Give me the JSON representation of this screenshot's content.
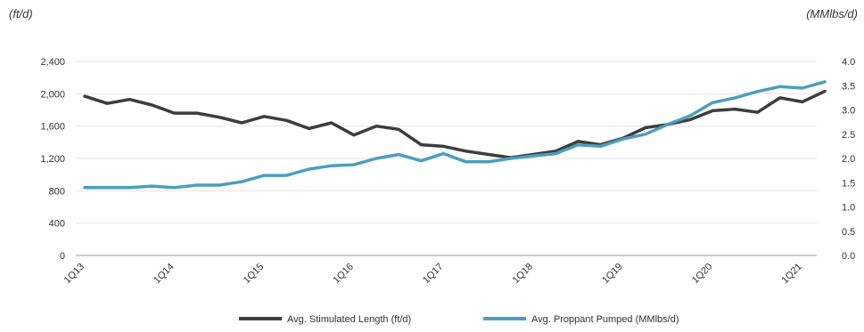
{
  "chart_data": {
    "type": "line",
    "title": "",
    "left_axis": {
      "unit_label": "(ft/d)",
      "ylim": [
        0,
        2400
      ],
      "ticks": [
        "0",
        "400",
        "800",
        "1,200",
        "1,600",
        "2,000",
        "2,400"
      ],
      "tick_values": [
        0,
        400,
        800,
        1200,
        1600,
        2000,
        2400
      ]
    },
    "right_axis": {
      "unit_label": "(MMlbs/d)",
      "ylim": [
        0,
        4.0
      ],
      "ticks": [
        "0.0",
        "0.5",
        "1.0",
        "1.5",
        "2.0",
        "2.5",
        "3.0",
        "3.5",
        "4.0"
      ],
      "tick_values": [
        0,
        0.5,
        1.0,
        1.5,
        2.0,
        2.5,
        3.0,
        3.5,
        4.0
      ]
    },
    "x_tick_labels": [
      "1Q13",
      "1Q14",
      "1Q15",
      "1Q16",
      "1Q17",
      "1Q18",
      "1Q19",
      "1Q20",
      "1Q21"
    ],
    "x_tick_indices": [
      0,
      4,
      8,
      12,
      16,
      20,
      24,
      28,
      32
    ],
    "categories": [
      "1Q13",
      "2Q13",
      "3Q13",
      "4Q13",
      "1Q14",
      "2Q14",
      "3Q14",
      "4Q14",
      "1Q15",
      "2Q15",
      "3Q15",
      "4Q15",
      "1Q16",
      "2Q16",
      "3Q16",
      "4Q16",
      "1Q17",
      "2Q17",
      "3Q17",
      "4Q17",
      "1Q18",
      "2Q18",
      "3Q18",
      "4Q18",
      "1Q19",
      "2Q19",
      "3Q19",
      "4Q19",
      "1Q20",
      "2Q20",
      "3Q20",
      "4Q20",
      "1Q21",
      "2Q21"
    ],
    "grid": true,
    "legend_position": "bottom",
    "series": [
      {
        "name": "Avg. Stimulated Length (ft/d)",
        "axis": "left",
        "color": "#3d3d3d",
        "values": [
          1970,
          1880,
          1930,
          1860,
          1760,
          1760,
          1710,
          1640,
          1720,
          1670,
          1570,
          1640,
          1490,
          1600,
          1560,
          1370,
          1350,
          1290,
          1250,
          1210,
          1250,
          1290,
          1410,
          1370,
          1450,
          1580,
          1620,
          1680,
          1790,
          1810,
          1770,
          1950,
          1900,
          2030
        ]
      },
      {
        "name": "Avg. Proppant Pumped (MMlbs/d)",
        "axis": "right",
        "color": "#4b9fbe",
        "values": [
          1.4,
          1.4,
          1.4,
          1.43,
          1.4,
          1.45,
          1.45,
          1.52,
          1.65,
          1.65,
          1.78,
          1.85,
          1.87,
          2.0,
          2.08,
          1.95,
          2.1,
          1.93,
          1.93,
          2.0,
          2.05,
          2.1,
          2.28,
          2.25,
          2.4,
          2.5,
          2.7,
          2.88,
          3.15,
          3.25,
          3.38,
          3.48,
          3.45,
          3.58
        ]
      }
    ]
  }
}
